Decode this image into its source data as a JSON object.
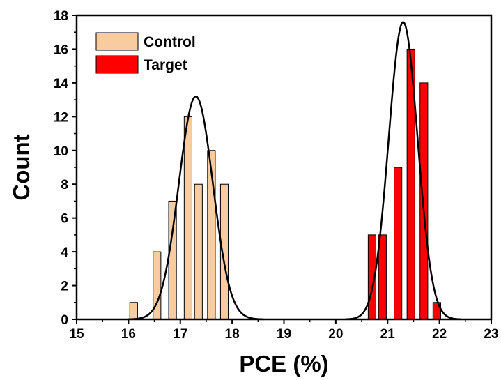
{
  "chart_data": {
    "type": "bar",
    "xlabel": "PCE (%)",
    "ylabel": "Count",
    "xlim": [
      15,
      23
    ],
    "ylim": [
      0,
      18
    ],
    "xticks": [
      15,
      16,
      17,
      18,
      19,
      20,
      21,
      22,
      23
    ],
    "yticks": [
      0,
      2,
      4,
      6,
      8,
      10,
      12,
      14,
      16,
      18
    ],
    "bin_width": 0.15,
    "legend_position": "top-left",
    "grid": false,
    "series": [
      {
        "name": "Control",
        "color": "#F8CBA0",
        "x": [
          16.1,
          16.55,
          16.85,
          17.15,
          17.35,
          17.6,
          17.85
        ],
        "values": [
          1,
          4,
          7,
          12,
          8,
          10,
          8
        ],
        "fit": {
          "type": "gaussian",
          "center": 17.3,
          "peak": 13.2,
          "sigma": 0.33
        }
      },
      {
        "name": "Target",
        "color": "#FF0000",
        "x": [
          20.7,
          20.9,
          21.2,
          21.45,
          21.7,
          21.95
        ],
        "values": [
          5,
          5,
          9,
          16,
          14,
          1
        ],
        "fit": {
          "type": "gaussian",
          "center": 21.3,
          "peak": 17.6,
          "sigma": 0.28
        }
      }
    ]
  }
}
